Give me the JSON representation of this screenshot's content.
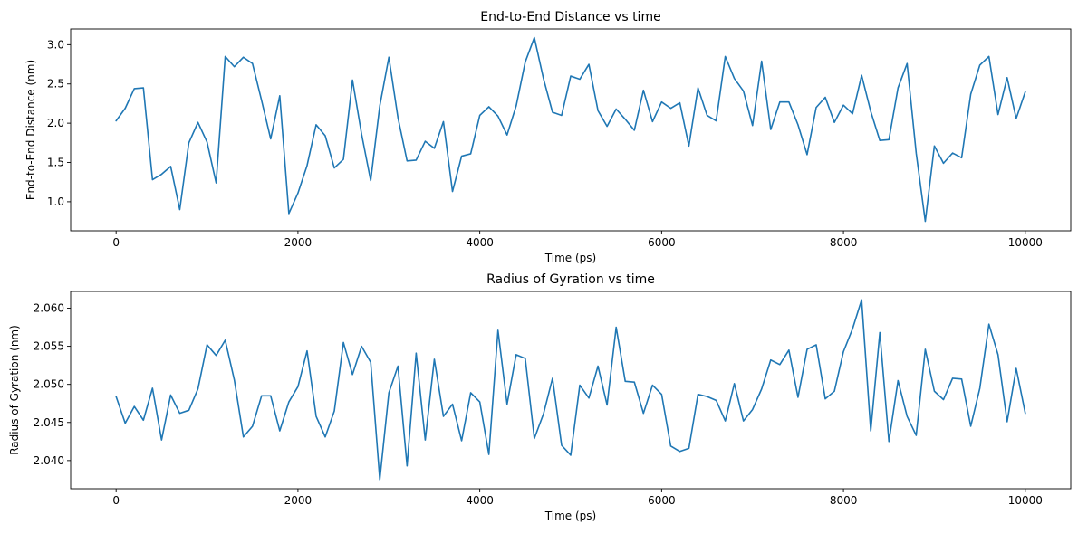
{
  "chart_data": [
    {
      "type": "line",
      "title": "End-to-End Distance vs time",
      "xlabel": "Time (ps)",
      "ylabel": "End-to-End Distance (nm)",
      "xlim": [
        -500,
        10500
      ],
      "ylim": [
        0.63,
        3.2
      ],
      "xticks": [
        0,
        2000,
        4000,
        6000,
        8000,
        10000
      ],
      "xtick_labels": [
        "0",
        "2000",
        "4000",
        "6000",
        "8000",
        "10000"
      ],
      "yticks": [
        1.0,
        1.5,
        2.0,
        2.5,
        3.0
      ],
      "ytick_labels": [
        "1.0",
        "1.5",
        "2.0",
        "2.5",
        "3.0"
      ],
      "grid": false,
      "color": "#1f77b4",
      "x": [
        0,
        100,
        200,
        300,
        400,
        500,
        600,
        700,
        800,
        900,
        1000,
        1100,
        1200,
        1300,
        1400,
        1500,
        1600,
        1700,
        1800,
        1900,
        2000,
        2100,
        2200,
        2300,
        2400,
        2500,
        2600,
        2700,
        2800,
        2900,
        3000,
        3100,
        3200,
        3300,
        3400,
        3500,
        3600,
        3700,
        3800,
        3900,
        4000,
        4100,
        4200,
        4300,
        4400,
        4500,
        4600,
        4700,
        4800,
        4900,
        5000,
        5100,
        5200,
        5300,
        5400,
        5500,
        5600,
        5700,
        5800,
        5900,
        6000,
        6100,
        6200,
        6300,
        6400,
        6500,
        6600,
        6700,
        6800,
        6900,
        7000,
        7100,
        7200,
        7300,
        7400,
        7500,
        7600,
        7700,
        7800,
        7900,
        8000,
        8100,
        8200,
        8300,
        8400,
        8500,
        8600,
        8700,
        8800,
        8900,
        9000,
        9100,
        9200,
        9300,
        9400,
        9500,
        9600,
        9700,
        9800,
        9900,
        10000
      ],
      "values": [
        2.03,
        2.19,
        2.44,
        2.45,
        1.28,
        1.35,
        1.45,
        0.9,
        1.75,
        2.01,
        1.76,
        1.24,
        2.85,
        2.72,
        2.84,
        2.76,
        2.29,
        1.8,
        2.35,
        0.85,
        1.11,
        1.46,
        1.98,
        1.84,
        1.43,
        1.54,
        2.55,
        1.86,
        1.27,
        2.22,
        2.84,
        2.07,
        1.52,
        1.53,
        1.77,
        1.68,
        2.02,
        1.13,
        1.58,
        1.61,
        2.1,
        2.21,
        2.09,
        1.85,
        2.22,
        2.78,
        3.09,
        2.57,
        2.14,
        2.1,
        2.6,
        2.56,
        2.75,
        2.16,
        1.96,
        2.18,
        2.05,
        1.91,
        2.42,
        2.02,
        2.27,
        2.19,
        2.26,
        1.71,
        2.45,
        2.1,
        2.03,
        2.85,
        2.57,
        2.41,
        1.97,
        2.79,
        1.92,
        2.27,
        2.27,
        1.98,
        1.6,
        2.2,
        2.33,
        2.01,
        2.23,
        2.12,
        2.61,
        2.15,
        1.78,
        1.79,
        2.45,
        2.76,
        1.62,
        0.75,
        1.71,
        1.49,
        1.62,
        1.56,
        2.37,
        2.74,
        2.85,
        2.11,
        2.58,
        2.06,
        2.4
      ]
    },
    {
      "type": "line",
      "title": "Radius of Gyration vs time",
      "xlabel": "Time (ps)",
      "ylabel": "Radius of Gyration (nm)",
      "xlim": [
        -500,
        10500
      ],
      "ylim": [
        2.0363,
        2.0622
      ],
      "xticks": [
        0,
        2000,
        4000,
        6000,
        8000,
        10000
      ],
      "xtick_labels": [
        "0",
        "2000",
        "4000",
        "6000",
        "8000",
        "10000"
      ],
      "yticks": [
        2.04,
        2.045,
        2.05,
        2.055,
        2.06
      ],
      "ytick_labels": [
        "2.040",
        "2.045",
        "2.050",
        "2.055",
        "2.060"
      ],
      "grid": false,
      "color": "#1f77b4",
      "x": [
        0,
        100,
        200,
        300,
        400,
        500,
        600,
        700,
        800,
        900,
        1000,
        1100,
        1200,
        1300,
        1400,
        1500,
        1600,
        1700,
        1800,
        1900,
        2000,
        2100,
        2200,
        2300,
        2400,
        2500,
        2600,
        2700,
        2800,
        2900,
        3000,
        3100,
        3200,
        3300,
        3400,
        3500,
        3600,
        3700,
        3800,
        3900,
        4000,
        4100,
        4200,
        4300,
        4400,
        4500,
        4600,
        4700,
        4800,
        4900,
        5000,
        5100,
        5200,
        5300,
        5400,
        5500,
        5600,
        5700,
        5800,
        5900,
        6000,
        6100,
        6200,
        6300,
        6400,
        6500,
        6600,
        6700,
        6800,
        6900,
        7000,
        7100,
        7200,
        7300,
        7400,
        7500,
        7600,
        7700,
        7800,
        7900,
        8000,
        8100,
        8200,
        8300,
        8400,
        8500,
        8600,
        8700,
        8800,
        8900,
        9000,
        9100,
        9200,
        9300,
        9400,
        9500,
        9600,
        9700,
        9800,
        9900,
        10000
      ],
      "values": [
        2.0484,
        2.0449,
        2.0471,
        2.0453,
        2.0495,
        2.0427,
        2.0486,
        2.0462,
        2.0466,
        2.0494,
        2.0552,
        2.0538,
        2.0558,
        2.0506,
        2.0431,
        2.0445,
        2.0485,
        2.0485,
        2.0439,
        2.0477,
        2.0497,
        2.0544,
        2.0458,
        2.0431,
        2.0465,
        2.0555,
        2.0513,
        2.055,
        2.0529,
        2.0375,
        2.0489,
        2.0524,
        2.0393,
        2.0541,
        2.0427,
        2.0533,
        2.0458,
        2.0474,
        2.0426,
        2.0489,
        2.0477,
        2.0408,
        2.0571,
        2.0474,
        2.0539,
        2.0534,
        2.0429,
        2.0461,
        2.0508,
        2.042,
        2.0407,
        2.0499,
        2.0482,
        2.0524,
        2.0473,
        2.0575,
        2.0504,
        2.0503,
        2.0462,
        2.0499,
        2.0487,
        2.0419,
        2.0412,
        2.0416,
        2.0487,
        2.0484,
        2.0479,
        2.0452,
        2.0501,
        2.0452,
        2.0467,
        2.0494,
        2.0532,
        2.0526,
        2.0545,
        2.0483,
        2.0546,
        2.0552,
        2.0481,
        2.0491,
        2.0543,
        2.0573,
        2.0611,
        2.0439,
        2.0568,
        2.0425,
        2.0505,
        2.0458,
        2.0433,
        2.0546,
        2.0491,
        2.048,
        2.0508,
        2.0507,
        2.0445,
        2.0495,
        2.0579,
        2.0539,
        2.0451,
        2.0521,
        2.0462
      ]
    }
  ]
}
